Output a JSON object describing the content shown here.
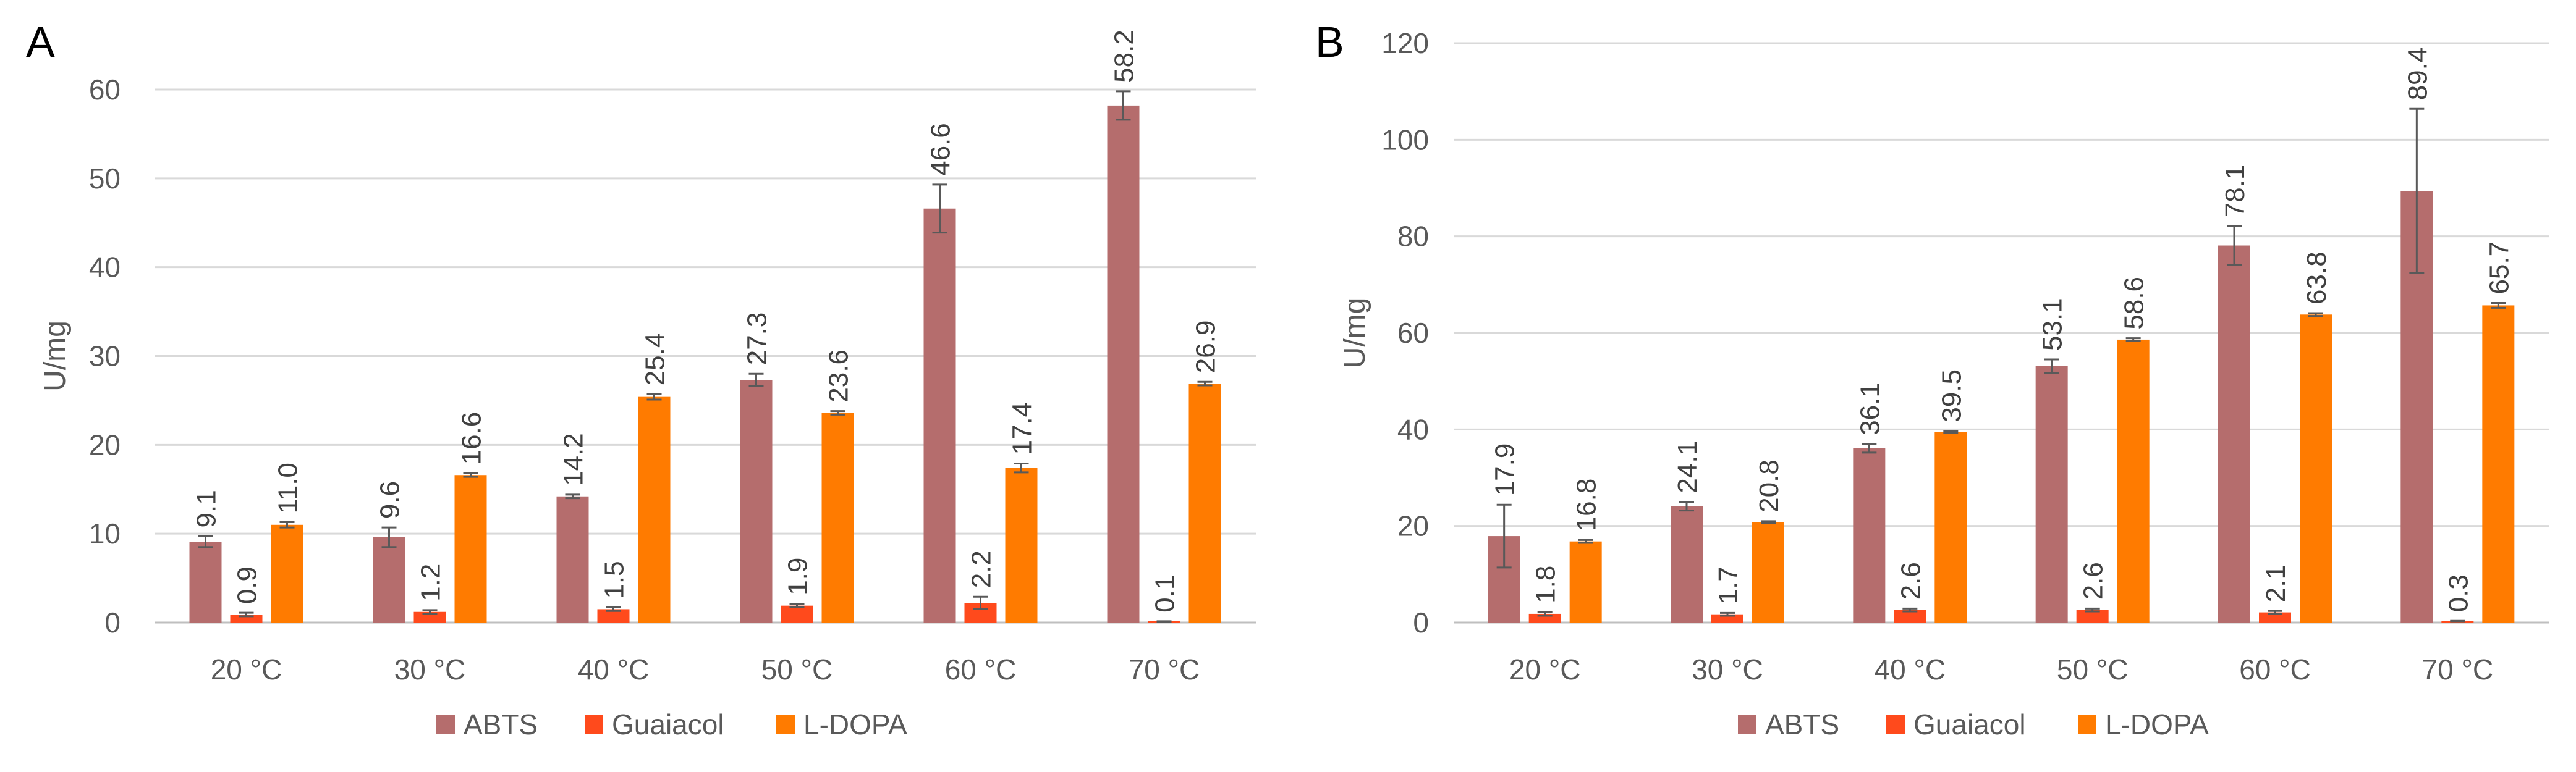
{
  "chart_data": [
    {
      "panel": "A",
      "type": "bar",
      "ylabel": "U/mg",
      "ylim": [
        0,
        60
      ],
      "yticks": [
        0,
        10,
        20,
        30,
        40,
        50,
        60
      ],
      "grid": true,
      "legend": "bottom",
      "categories": [
        "20 °C",
        "30 °C",
        "40 °C",
        "50 °C",
        "60 °C",
        "70 °C"
      ],
      "series": [
        {
          "name": "ABTS",
          "color": "#B56D6D",
          "values": [
            9.1,
            9.6,
            14.2,
            27.3,
            46.6,
            58.2
          ],
          "labels": [
            "9.1",
            "9.6",
            "14.2",
            "27.3",
            "46.6",
            "58.2"
          ],
          "errors": [
            0.6,
            1.1,
            0.2,
            0.7,
            2.7,
            1.6
          ]
        },
        {
          "name": "Guaiacol",
          "color": "#FF4A1C",
          "values": [
            0.9,
            1.2,
            1.5,
            1.9,
            2.2,
            0.1
          ],
          "labels": [
            "0.9",
            "1.2",
            "1.5",
            "1.9",
            "2.2",
            "0.1"
          ],
          "errors": [
            0.2,
            0.2,
            0.2,
            0.2,
            0.7,
            0.05
          ]
        },
        {
          "name": "L-DOPA",
          "color": "#FF7B00",
          "values": [
            11.0,
            16.6,
            25.4,
            23.6,
            17.4,
            26.9
          ],
          "labels": [
            "11.0",
            "16.6",
            "25.4",
            "23.6",
            "17.4",
            "26.9"
          ],
          "errors": [
            0.3,
            0.2,
            0.3,
            0.2,
            0.5,
            0.2
          ]
        }
      ]
    },
    {
      "panel": "B",
      "type": "bar",
      "ylabel": "U/mg",
      "ylim": [
        0,
        120
      ],
      "yticks": [
        0,
        20,
        40,
        60,
        80,
        100,
        120
      ],
      "grid": true,
      "legend": "bottom",
      "categories": [
        "20 °C",
        "30 °C",
        "40 °C",
        "50 °C",
        "60 °C",
        "70 °C"
      ],
      "series": [
        {
          "name": "ABTS",
          "color": "#B56D6D",
          "values": [
            17.9,
            24.1,
            36.1,
            53.1,
            78.1,
            89.4
          ],
          "labels": [
            "17.9",
            "24.1",
            "36.1",
            "53.1",
            "78.1",
            "89.4"
          ],
          "errors": [
            6.5,
            0.9,
            0.9,
            1.4,
            4.0,
            17.0
          ]
        },
        {
          "name": "Guaiacol",
          "color": "#FF4A1C",
          "values": [
            1.8,
            1.7,
            2.6,
            2.6,
            2.1,
            0.3
          ],
          "labels": [
            "1.8",
            "1.7",
            "2.6",
            "2.6",
            "2.1",
            "0.3"
          ],
          "errors": [
            0.4,
            0.3,
            0.3,
            0.3,
            0.3,
            0.05
          ]
        },
        {
          "name": "L-DOPA",
          "color": "#FF7B00",
          "values": [
            16.8,
            20.8,
            39.5,
            58.6,
            63.8,
            65.7
          ],
          "labels": [
            "16.8",
            "20.8",
            "39.5",
            "58.6",
            "63.8",
            "65.7"
          ],
          "errors": [
            0.3,
            0.2,
            0.2,
            0.3,
            0.3,
            0.5
          ]
        }
      ]
    }
  ]
}
